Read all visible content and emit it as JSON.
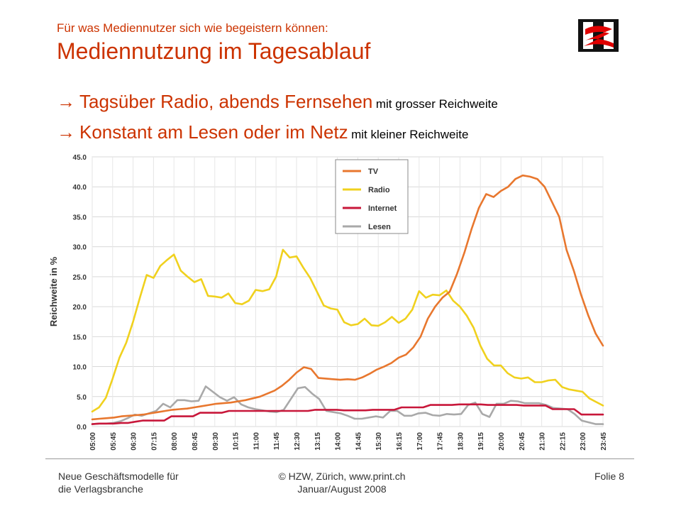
{
  "header": {
    "kicker": "Für was Mediennutzer sich wie begeistern können:",
    "title": "Mediennutzung im Tagesablauf"
  },
  "bullets": [
    {
      "arrow": "→",
      "main": "Tagsüber Radio, abends Fernsehen",
      "small": "mit grosser Reichweite"
    },
    {
      "arrow": "→",
      "main": "Konstant am Lesen oder im Netz",
      "small": "mit kleiner Reichweite"
    }
  ],
  "footer": {
    "left_1": "Neue Geschäftsmodelle für",
    "left_2": "die Verlagsbranche",
    "center_1": "© HZW, Zürich, www.print.ch",
    "center_2": "Januar/August 2008",
    "right": "Folie 8"
  },
  "chart_data": {
    "type": "line",
    "ylabel": "Reichweite in %",
    "ylim": [
      0,
      45
    ],
    "yticks": [
      "0.0",
      "5.0",
      "10.0",
      "15.0",
      "20.0",
      "25.0",
      "30.0",
      "35.0",
      "40.0",
      "45.0"
    ],
    "xticks": [
      "05:00",
      "05:45",
      "06:30",
      "07:15",
      "08:00",
      "08:45",
      "09:30",
      "10:15",
      "11:00",
      "11:45",
      "12:30",
      "13:15",
      "14:00",
      "14:45",
      "15:30",
      "16:15",
      "17:00",
      "17:45",
      "18:30",
      "19:15",
      "20:00",
      "20:45",
      "21:30",
      "22:15",
      "23:00",
      "23:45"
    ],
    "grid": true,
    "legend_position": "top-center",
    "series": [
      {
        "name": "TV",
        "color": "#e8772e",
        "values": [
          1.2,
          1.3,
          1.4,
          1.5,
          1.7,
          1.8,
          1.9,
          2.0,
          2.2,
          2.4,
          2.6,
          2.8,
          2.9,
          3.0,
          3.2,
          3.4,
          3.6,
          3.8,
          3.9,
          4.0,
          4.2,
          4.4,
          4.7,
          5.0,
          5.5,
          6.0,
          6.8,
          7.8,
          9.0,
          9.9,
          9.6,
          8.1,
          8.0,
          7.9,
          7.8,
          7.9,
          7.8,
          8.2,
          8.8,
          9.5,
          10.0,
          10.6,
          11.5,
          12.0,
          13.2,
          15.0,
          18.0,
          20.0,
          21.5,
          22.5,
          25.5,
          29.0,
          33.0,
          36.5,
          38.8,
          38.3,
          39.3,
          40.0,
          41.3,
          41.9,
          41.7,
          41.3,
          40.0,
          37.5,
          35.0,
          29.5,
          26.0,
          22.0,
          18.5,
          15.5,
          13.5
        ]
      },
      {
        "name": "Radio",
        "color": "#f0d11e",
        "values": [
          2.5,
          3.2,
          4.8,
          8.0,
          11.5,
          14.0,
          17.5,
          21.5,
          25.3,
          24.8,
          26.8,
          27.8,
          28.7,
          26.0,
          25.0,
          24.1,
          24.6,
          21.8,
          21.7,
          21.5,
          22.2,
          20.6,
          20.4,
          21.0,
          22.8,
          22.6,
          22.9,
          25.0,
          29.5,
          28.2,
          28.4,
          26.5,
          24.8,
          22.5,
          20.2,
          19.7,
          19.5,
          17.4,
          16.9,
          17.1,
          18.0,
          16.9,
          16.8,
          17.4,
          18.3,
          17.3,
          18.0,
          19.5,
          22.6,
          21.5,
          22.0,
          21.9,
          22.7,
          21.0,
          20.0,
          18.5,
          16.5,
          13.5,
          11.3,
          10.2,
          10.2,
          8.9,
          8.2,
          8.0,
          8.2,
          7.4,
          7.4,
          7.7,
          7.8,
          6.6,
          6.2,
          6.0,
          5.8,
          4.7,
          4.1,
          3.5
        ]
      },
      {
        "name": "Internet",
        "color": "#c8173a",
        "values": [
          0.4,
          0.5,
          0.5,
          0.5,
          0.6,
          0.6,
          0.8,
          1.0,
          1.0,
          1.0,
          1.0,
          1.7,
          1.7,
          1.7,
          1.7,
          2.3,
          2.3,
          2.3,
          2.3,
          2.6,
          2.6,
          2.6,
          2.6,
          2.6,
          2.6,
          2.6,
          2.6,
          2.6,
          2.6,
          2.6,
          2.6,
          2.8,
          2.8,
          2.8,
          2.8,
          2.7,
          2.7,
          2.7,
          2.7,
          2.8,
          2.8,
          2.8,
          2.8,
          3.2,
          3.2,
          3.2,
          3.2,
          3.6,
          3.6,
          3.6,
          3.6,
          3.7,
          3.7,
          3.7,
          3.7,
          3.6,
          3.6,
          3.6,
          3.6,
          3.6,
          3.5,
          3.5,
          3.5,
          3.5,
          2.9,
          2.9,
          2.9,
          2.9,
          2.0,
          2.0,
          2.0,
          2.0
        ]
      },
      {
        "name": "Lesen",
        "color": "#a9a9a9",
        "values": [
          0.4,
          0.5,
          0.5,
          0.6,
          0.9,
          1.4,
          2.0,
          1.8,
          2.2,
          2.6,
          3.8,
          3.2,
          4.4,
          4.4,
          4.2,
          4.3,
          6.7,
          5.8,
          4.9,
          4.3,
          4.9,
          3.7,
          3.2,
          2.9,
          2.7,
          2.5,
          2.4,
          2.8,
          4.6,
          6.4,
          6.6,
          5.5,
          4.6,
          2.6,
          2.4,
          2.2,
          1.8,
          1.3,
          1.3,
          1.5,
          1.7,
          1.5,
          2.6,
          2.6,
          1.8,
          1.8,
          2.2,
          2.3,
          1.9,
          1.8,
          2.1,
          2.0,
          2.1,
          3.6,
          4.0,
          2.1,
          1.6,
          3.8,
          3.8,
          4.3,
          4.2,
          3.9,
          3.9,
          3.9,
          3.6,
          3.1,
          3.0,
          2.9,
          2.1,
          1.0,
          0.7,
          0.4,
          0.4
        ]
      }
    ]
  }
}
